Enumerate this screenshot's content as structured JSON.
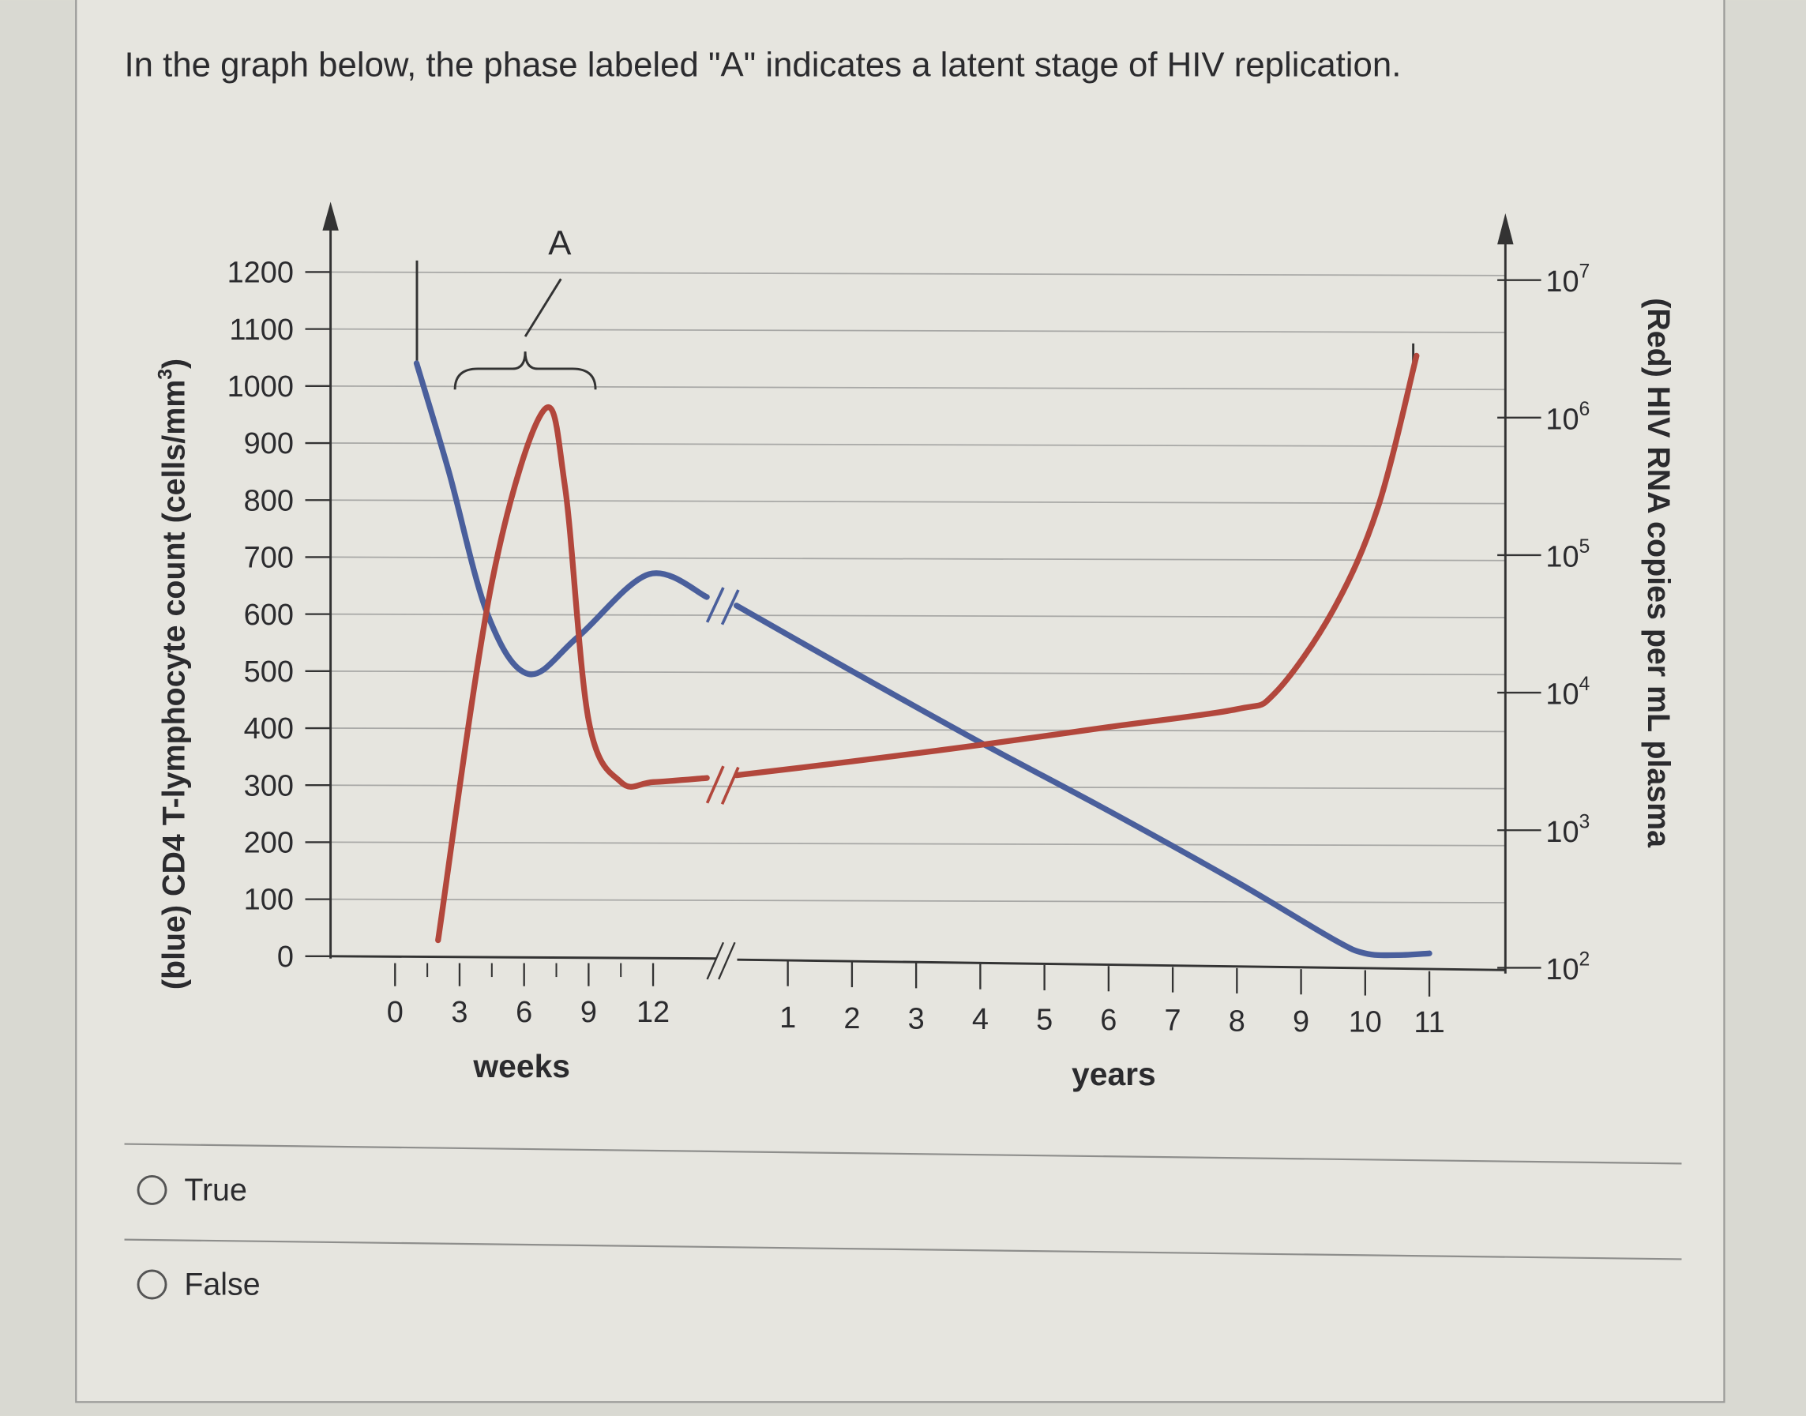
{
  "question": {
    "text": "In the graph below, the phase labeled \"A\" indicates a latent stage of HIV replication.",
    "options": [
      {
        "label": "True",
        "selected": false
      },
      {
        "label": "False",
        "selected": false
      }
    ]
  },
  "chart_data": {
    "type": "line",
    "annotation": "A",
    "left_axis": {
      "label_bold": "(blue)",
      "label_rest": " CD4 T-lymphocyte count (cells/mm",
      "label_sup": "3",
      "label_end": ")",
      "ticks": [
        "0",
        "100",
        "200",
        "300",
        "400",
        "500",
        "600",
        "700",
        "800",
        "900",
        "1000",
        "1100",
        "1200"
      ],
      "range": [
        0,
        1200
      ]
    },
    "right_axis": {
      "label_bold": "(Red)",
      "label_rest": " HIV RNA copies per mL plasma",
      "scale": "log",
      "ticks": [
        {
          "base": "10",
          "exp": "2"
        },
        {
          "base": "10",
          "exp": "3"
        },
        {
          "base": "10",
          "exp": "4"
        },
        {
          "base": "10",
          "exp": "5"
        },
        {
          "base": "10",
          "exp": "6"
        },
        {
          "base": "10",
          "exp": "7"
        }
      ],
      "range_log10": [
        2,
        7
      ]
    },
    "x_axis": {
      "weeks_label": "weeks",
      "years_label": "years",
      "weeks_ticks": [
        "0",
        "3",
        "6",
        "9",
        "12"
      ],
      "years_ticks": [
        "1",
        "2",
        "3",
        "4",
        "5",
        "6",
        "7",
        "8",
        "9",
        "10",
        "11"
      ],
      "axis_break": true
    },
    "series": [
      {
        "name": "CD4 T-lymphocyte count",
        "color": "#4a5f9c",
        "axis": "left",
        "weeks_points": [
          [
            1.0,
            1040
          ],
          [
            2.5,
            850
          ],
          [
            4.3,
            600
          ],
          [
            6.2,
            495
          ],
          [
            8.5,
            560
          ],
          [
            11.8,
            670
          ],
          [
            14.5,
            630
          ]
        ],
        "years_points": [
          [
            0.2,
            615
          ],
          [
            2,
            500
          ],
          [
            4,
            375
          ],
          [
            6,
            255
          ],
          [
            8,
            130
          ],
          [
            9.5,
            30
          ],
          [
            10,
            5
          ],
          [
            10.5,
            2
          ],
          [
            11,
            5
          ]
        ]
      },
      {
        "name": "HIV RNA copies per mL plasma (log10)",
        "color": "#b2473c",
        "axis": "right",
        "weeks_points": [
          [
            2.0,
            2.2
          ],
          [
            4.5,
            4.8
          ],
          [
            6.9,
            6.05
          ],
          [
            7.9,
            5.5
          ],
          [
            9.0,
            3.8
          ],
          [
            10.5,
            3.35
          ],
          [
            12,
            3.35
          ],
          [
            14.5,
            3.38
          ]
        ],
        "years_points": [
          [
            0.2,
            3.4
          ],
          [
            2,
            3.5
          ],
          [
            4,
            3.62
          ],
          [
            6,
            3.75
          ],
          [
            8,
            3.88
          ],
          [
            8.6,
            4.0
          ],
          [
            9.5,
            4.6
          ],
          [
            10.2,
            5.35
          ],
          [
            10.8,
            6.45
          ]
        ]
      }
    ]
  }
}
